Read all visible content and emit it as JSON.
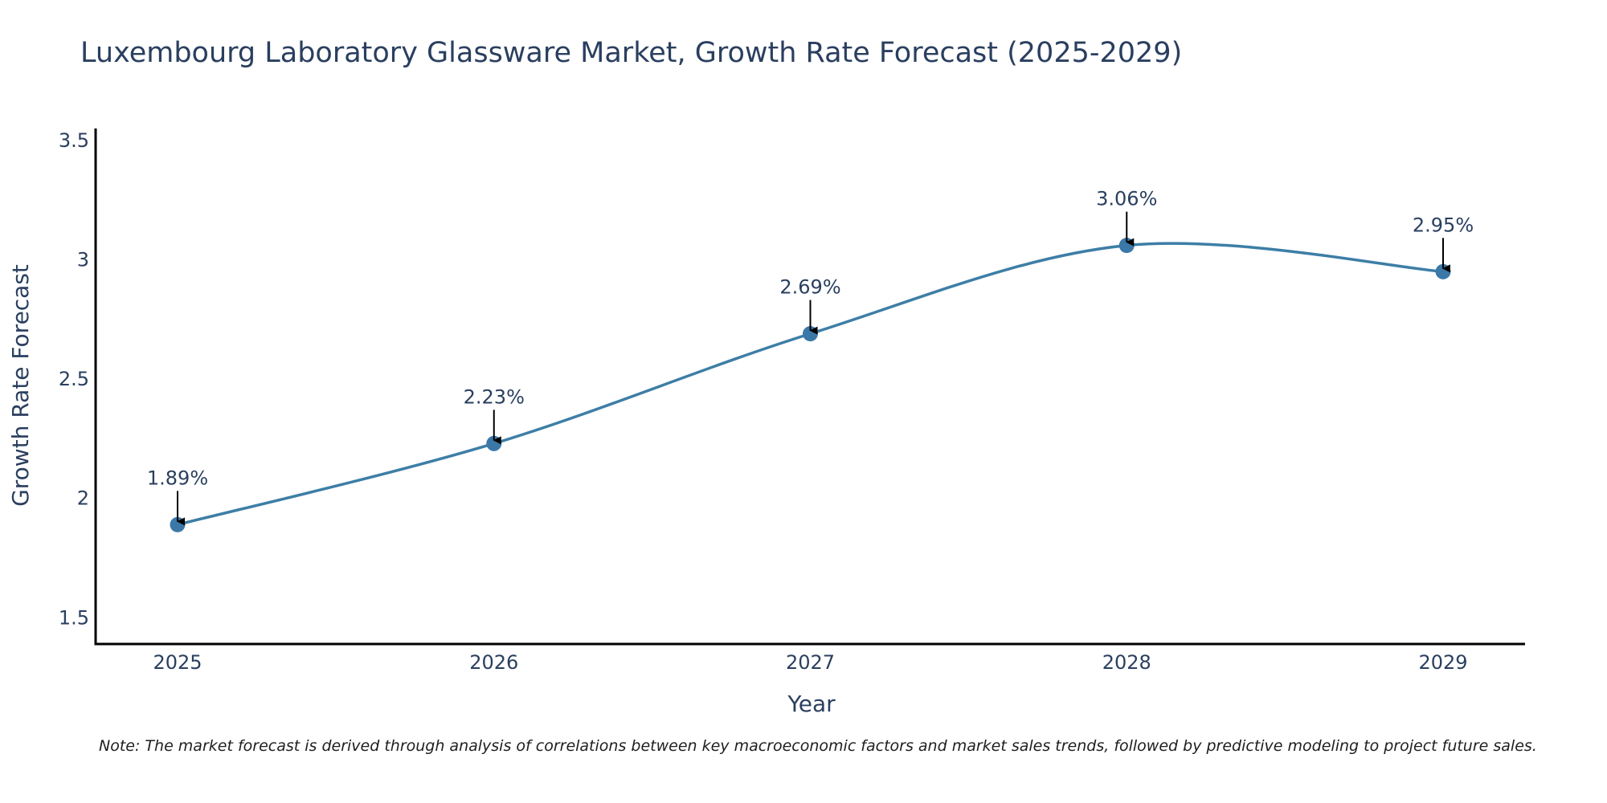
{
  "chart_data": {
    "type": "line",
    "title": "Luxembourg Laboratory Glassware Market, Growth Rate Forecast (2025-2029)",
    "xlabel": "Year",
    "ylabel": "Growth Rate Forecast",
    "categories": [
      "2025",
      "2026",
      "2027",
      "2028",
      "2029"
    ],
    "values": [
      1.89,
      2.23,
      2.69,
      3.06,
      2.95
    ],
    "data_labels": [
      "1.89%",
      "2.23%",
      "2.69%",
      "3.06%",
      "2.95%"
    ],
    "y_ticks": [
      1.5,
      2,
      2.5,
      3,
      3.5
    ],
    "y_tick_labels": [
      "1.5",
      "2",
      "2.5",
      "3",
      "3.5"
    ],
    "ylim": [
      1.39,
      3.55
    ],
    "grid": false,
    "line_shape": "spline",
    "colors": {
      "series": "#3d7ea6",
      "marker": "#3b78a8",
      "arrow": "#000000",
      "axis": "#000000"
    }
  },
  "note": "Note: The market forecast is derived through analysis of correlations between key macroeconomic factors and market sales trends, followed by predictive modeling to project future sales."
}
